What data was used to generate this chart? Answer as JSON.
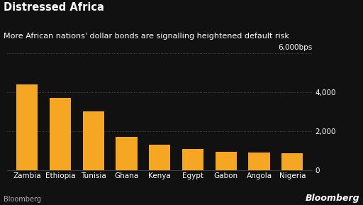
{
  "title": "Distressed Africa",
  "subtitle": "More African nations' dollar bonds are signalling heightened default risk",
  "categories": [
    "Zambia",
    "Ethiopia",
    "Tunisia",
    "Ghana",
    "Kenya",
    "Egypt",
    "Gabon",
    "Angola",
    "Nigeria"
  ],
  "values": [
    4400,
    3700,
    3000,
    1700,
    1300,
    1100,
    950,
    900,
    870
  ],
  "bar_color": "#F5A623",
  "background_color": "#111111",
  "text_color": "#ffffff",
  "grid_color": "#555555",
  "ylim": [
    0,
    6300
  ],
  "ytick_positions": [
    0,
    2000,
    4000
  ],
  "ytick_labels": [
    "0",
    "2,000",
    "4,000"
  ],
  "source_left": "Bloomberg",
  "source_right": "Bloomberg",
  "title_fontsize": 10.5,
  "subtitle_fontsize": 8.0,
  "tick_fontsize": 7.5,
  "source_fontsize": 7.0
}
